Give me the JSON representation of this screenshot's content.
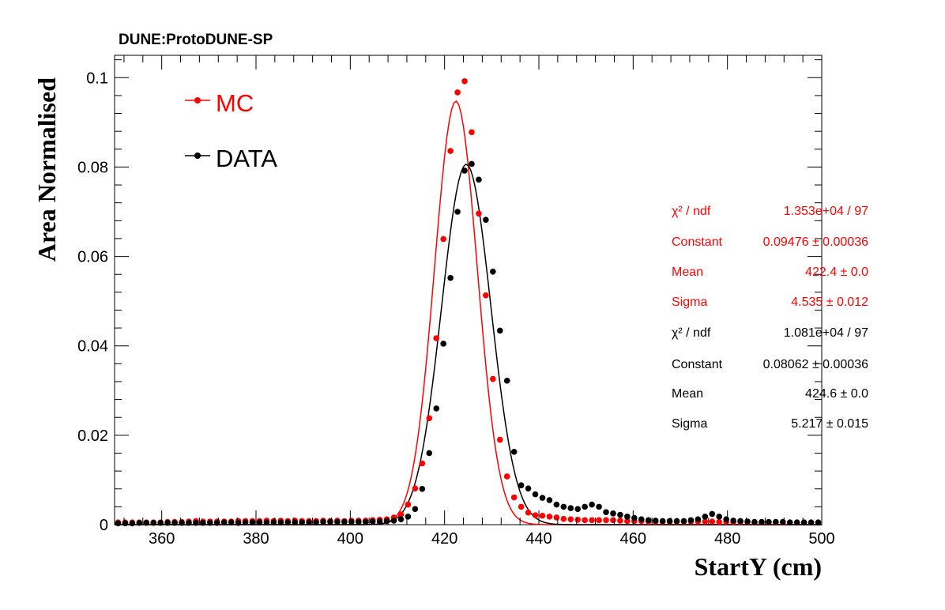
{
  "header": {
    "experiment": "DUNE:ProtoDUNE-SP"
  },
  "colors": {
    "mc": "#ff0000",
    "data": "#000000"
  },
  "chart_data": {
    "type": "scatter",
    "xlabel": "StartY (cm)",
    "ylabel": "Area Normalised",
    "xlim": [
      350,
      500
    ],
    "ylim": [
      0,
      0.105
    ],
    "x_ticks": [
      "360",
      "380",
      "400",
      "420",
      "440",
      "460",
      "480",
      "500"
    ],
    "x_tick_values": [
      360,
      380,
      400,
      420,
      440,
      460,
      480,
      500
    ],
    "y_ticks": [
      "0",
      "0.02",
      "0.04",
      "0.06",
      "0.08",
      "0.1"
    ],
    "y_tick_values": [
      0,
      0.02,
      0.04,
      0.06,
      0.08,
      0.1
    ],
    "legend": {
      "position": "top-left",
      "entries": [
        "MC",
        "DATA"
      ]
    },
    "series": [
      {
        "name": "MC",
        "color": "#ff0000",
        "x": [
          350.75,
          352.25,
          353.75,
          355.25,
          356.75,
          358.25,
          359.75,
          361.25,
          362.75,
          364.25,
          365.75,
          367.25,
          368.75,
          370.25,
          371.75,
          373.25,
          374.75,
          376.25,
          377.75,
          379.25,
          380.75,
          382.25,
          383.75,
          385.25,
          386.75,
          388.25,
          389.75,
          391.25,
          392.75,
          394.25,
          395.75,
          397.25,
          398.75,
          400.25,
          401.75,
          403.25,
          404.75,
          406.25,
          407.75,
          409.25,
          410.75,
          412.25,
          413.75,
          415.25,
          416.75,
          418.25,
          419.75,
          421.25,
          422.75,
          424.25,
          425.75,
          427.25,
          428.75,
          430.25,
          431.75,
          433.25,
          434.75,
          436.25,
          437.75,
          439.25,
          440.75,
          442.25,
          443.75,
          445.25,
          446.75,
          448.25,
          449.75,
          451.25,
          452.75,
          454.25,
          455.75,
          457.25,
          458.75,
          460.25,
          461.75,
          463.25,
          464.75,
          466.25,
          467.75,
          469.25,
          470.75,
          472.25,
          473.75,
          475.25,
          476.75,
          478.25,
          479.75,
          481.25,
          482.75,
          484.25,
          485.75,
          487.25,
          488.75,
          490.25,
          491.75,
          493.25,
          494.75,
          496.25,
          497.75,
          499.25
        ],
        "y": [
          0.0005,
          0.0005,
          0.0005,
          0.0005,
          0.0005,
          0.0005,
          0.0005,
          0.0006,
          0.0006,
          0.0006,
          0.0007,
          0.0008,
          0.0007,
          0.0007,
          0.0007,
          0.0007,
          0.0007,
          0.0008,
          0.0008,
          0.0008,
          0.0008,
          0.0009,
          0.0008,
          0.0009,
          0.0008,
          0.0009,
          0.0008,
          0.0008,
          0.0008,
          0.0009,
          0.0008,
          0.0009,
          0.0008,
          0.0009,
          0.0009,
          0.0009,
          0.001,
          0.0011,
          0.0012,
          0.0016,
          0.0023,
          0.0045,
          0.0081,
          0.0137,
          0.0238,
          0.0417,
          0.0639,
          0.0836,
          0.0967,
          0.0992,
          0.0878,
          0.0696,
          0.0513,
          0.0326,
          0.019,
          0.0108,
          0.0061,
          0.004,
          0.0027,
          0.0021,
          0.002,
          0.0018,
          0.0016,
          0.0013,
          0.0012,
          0.0011,
          0.001,
          0.001,
          0.001,
          0.001,
          0.001,
          0.0009,
          0.0008,
          0.0008,
          0.0008,
          0.0007,
          0.0007,
          0.0007,
          0.0007,
          0.0007,
          0.0007,
          0.0007,
          0.0007,
          0.0007,
          0.0007,
          0.0006,
          0.0006,
          0.0006,
          0.0006,
          0.0006,
          0.0005,
          0.0005,
          0.0005,
          0.0005,
          0.0005,
          0.0005,
          0.0005,
          0.0005,
          0.0005,
          0.0005
        ]
      },
      {
        "name": "DATA",
        "color": "#000000",
        "x": [
          350.75,
          352.25,
          353.75,
          355.25,
          356.75,
          358.25,
          359.75,
          361.25,
          362.75,
          364.25,
          365.75,
          367.25,
          368.75,
          370.25,
          371.75,
          373.25,
          374.75,
          376.25,
          377.75,
          379.25,
          380.75,
          382.25,
          383.75,
          385.25,
          386.75,
          388.25,
          389.75,
          391.25,
          392.75,
          394.25,
          395.75,
          397.25,
          398.75,
          400.25,
          401.75,
          403.25,
          404.75,
          406.25,
          407.75,
          409.25,
          410.75,
          412.25,
          413.75,
          415.25,
          416.75,
          418.25,
          419.75,
          421.25,
          422.75,
          424.25,
          425.75,
          427.25,
          428.75,
          430.25,
          431.75,
          433.25,
          434.75,
          436.25,
          437.75,
          439.25,
          440.75,
          442.25,
          443.75,
          445.25,
          446.75,
          448.25,
          449.75,
          451.25,
          452.75,
          454.25,
          455.75,
          457.25,
          458.75,
          460.25,
          461.75,
          463.25,
          464.75,
          466.25,
          467.75,
          469.25,
          470.75,
          472.25,
          473.75,
          475.25,
          476.75,
          478.25,
          479.75,
          481.25,
          482.75,
          484.25,
          485.75,
          487.25,
          488.75,
          490.25,
          491.75,
          493.25,
          494.75,
          496.25,
          497.75,
          499.25
        ],
        "y": [
          0.0003,
          0.0003,
          0.0003,
          0.0004,
          0.0004,
          0.0004,
          0.0004,
          0.0004,
          0.0004,
          0.0004,
          0.0004,
          0.0004,
          0.0004,
          0.0004,
          0.0004,
          0.0005,
          0.0005,
          0.0004,
          0.0005,
          0.0005,
          0.0005,
          0.0005,
          0.0005,
          0.0005,
          0.0005,
          0.0005,
          0.0005,
          0.0005,
          0.0005,
          0.0006,
          0.0006,
          0.0006,
          0.0006,
          0.0006,
          0.0006,
          0.0006,
          0.0007,
          0.0007,
          0.0008,
          0.0009,
          0.0012,
          0.0018,
          0.0035,
          0.008,
          0.016,
          0.026,
          0.0405,
          0.0552,
          0.07,
          0.0792,
          0.0807,
          0.0772,
          0.0682,
          0.0566,
          0.0434,
          0.0322,
          0.0163,
          0.0088,
          0.0081,
          0.0068,
          0.006,
          0.0055,
          0.0045,
          0.004,
          0.0037,
          0.0035,
          0.004,
          0.0045,
          0.004,
          0.0028,
          0.0025,
          0.0022,
          0.0018,
          0.0015,
          0.0012,
          0.001,
          0.0009,
          0.0008,
          0.0008,
          0.0008,
          0.0008,
          0.001,
          0.0012,
          0.0018,
          0.0024,
          0.0018,
          0.0012,
          0.0009,
          0.0008,
          0.0007,
          0.0006,
          0.0006,
          0.0006,
          0.0006,
          0.0006,
          0.0005,
          0.0005,
          0.0005,
          0.0005,
          0.0005
        ]
      }
    ],
    "fits": [
      {
        "series": "MC",
        "function": "gaus",
        "constant": 0.09476,
        "mean": 422.4,
        "sigma": 4.535
      },
      {
        "series": "DATA",
        "function": "gaus",
        "constant": 0.08062,
        "mean": 424.6,
        "sigma": 5.217
      }
    ]
  },
  "stats": {
    "mc": {
      "chi2_label": "χ² / ndf",
      "chi2_value": "1.353e+04 / 97",
      "constant_label": "Constant",
      "constant_value": "0.09476 ± 0.00036",
      "mean_label": "Mean",
      "mean_value": "422.4 ± 0.0",
      "sigma_label": "Sigma",
      "sigma_value": "4.535 ± 0.012"
    },
    "data": {
      "chi2_label": "χ² / ndf",
      "chi2_value": "1.081e+04 / 97",
      "constant_label": "Constant",
      "constant_value": "0.08062 ± 0.00036",
      "mean_label": "Mean",
      "mean_value": "424.6 ± 0.0",
      "sigma_label": "Sigma",
      "sigma_value": "5.217 ± 0.015"
    }
  }
}
